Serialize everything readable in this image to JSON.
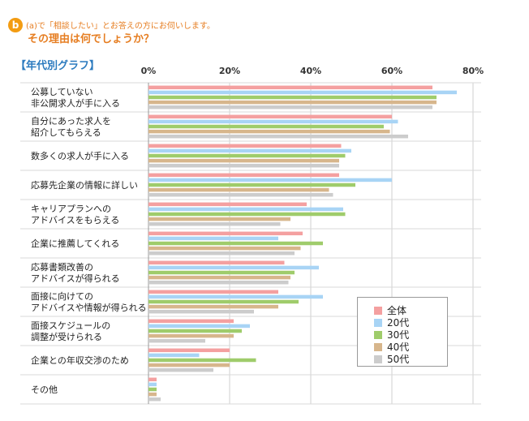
{
  "header": {
    "badge": "b",
    "question_line1": "(a)で「相談したい」とお答えの方にお伺いします。",
    "question_line2": "その理由は何でしょうか？"
  },
  "section_title": "【年代別グラフ】",
  "chart_data": {
    "type": "bar",
    "orientation": "horizontal",
    "xlim": [
      0,
      80
    ],
    "ticks": [
      "0%",
      "20%",
      "40%",
      "60%",
      "80%"
    ],
    "tick_values": [
      0,
      20,
      40,
      60,
      80
    ],
    "grid": true,
    "legend_position": "bottom-right",
    "categories": [
      [
        "公募していない",
        "非公開求人が手に入る"
      ],
      [
        "自分にあった求人を",
        "紹介してもらえる"
      ],
      [
        "数多くの求人が手に入る"
      ],
      [
        "応募先企業の情報に詳しい"
      ],
      [
        "キャリアプランへの",
        "アドバイスをもらえる"
      ],
      [
        "企業に推薦してくれる"
      ],
      [
        "応募書類改善の",
        "アドバイスが得られる"
      ],
      [
        "面接に向けての",
        "アドバイスや情報が得られる"
      ],
      [
        "面接スケジュールの",
        "調整が受けられる"
      ],
      [
        "企業との年収交渉のため"
      ],
      [
        "その他"
      ]
    ],
    "series": [
      {
        "name": "全体",
        "color": "#f4a0a0",
        "values": [
          70,
          60,
          47.5,
          47,
          39,
          38,
          33.5,
          32,
          21,
          20,
          2
        ]
      },
      {
        "name": "20代",
        "color": "#a8d4f5",
        "values": [
          76,
          61.5,
          50,
          60,
          48,
          32,
          42,
          43,
          25,
          12.5,
          2
        ]
      },
      {
        "name": "30代",
        "color": "#9fcc6b",
        "values": [
          71,
          58,
          48.5,
          51,
          48.5,
          43,
          36,
          37,
          23,
          26.5,
          2
        ]
      },
      {
        "name": "40代",
        "color": "#d7b68c",
        "values": [
          71,
          59.5,
          47,
          44.5,
          35,
          37.5,
          35,
          32,
          21,
          20,
          2
        ]
      },
      {
        "name": "50代",
        "color": "#cccccc",
        "values": [
          70,
          64,
          47,
          45.5,
          32.5,
          36,
          34.5,
          26,
          14,
          16,
          3
        ]
      }
    ]
  }
}
